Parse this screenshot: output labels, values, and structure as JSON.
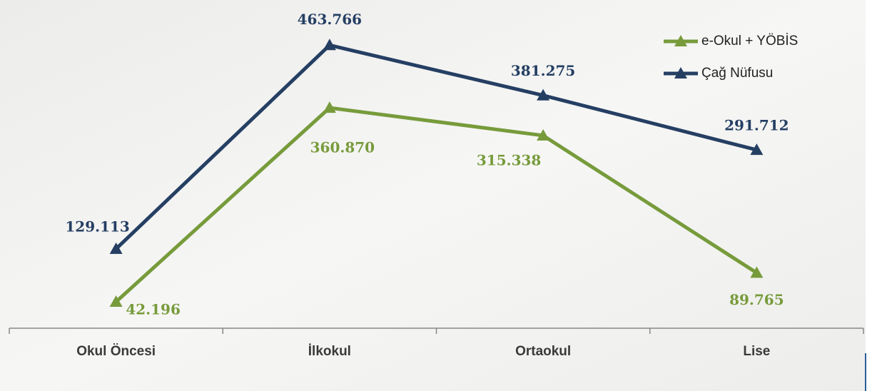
{
  "chart_data": {
    "type": "line",
    "categories": [
      "Okul Öncesi",
      "İlkokul",
      "Ortaokul",
      "Lise"
    ],
    "series": [
      {
        "name": "e-Okul + YÖBİS",
        "color": "#779b3b",
        "values": [
          42196,
          360870,
          315338,
          89765
        ],
        "value_labels": [
          "42.196",
          "360.870",
          "315.338",
          "89.765"
        ]
      },
      {
        "name": "Çağ Nüfusu",
        "color": "#253f63",
        "values": [
          129113,
          463766,
          381275,
          291712
        ],
        "value_labels": [
          "129.113",
          "463.766",
          "381.275",
          "291.712"
        ]
      }
    ],
    "legend": "top-right"
  }
}
